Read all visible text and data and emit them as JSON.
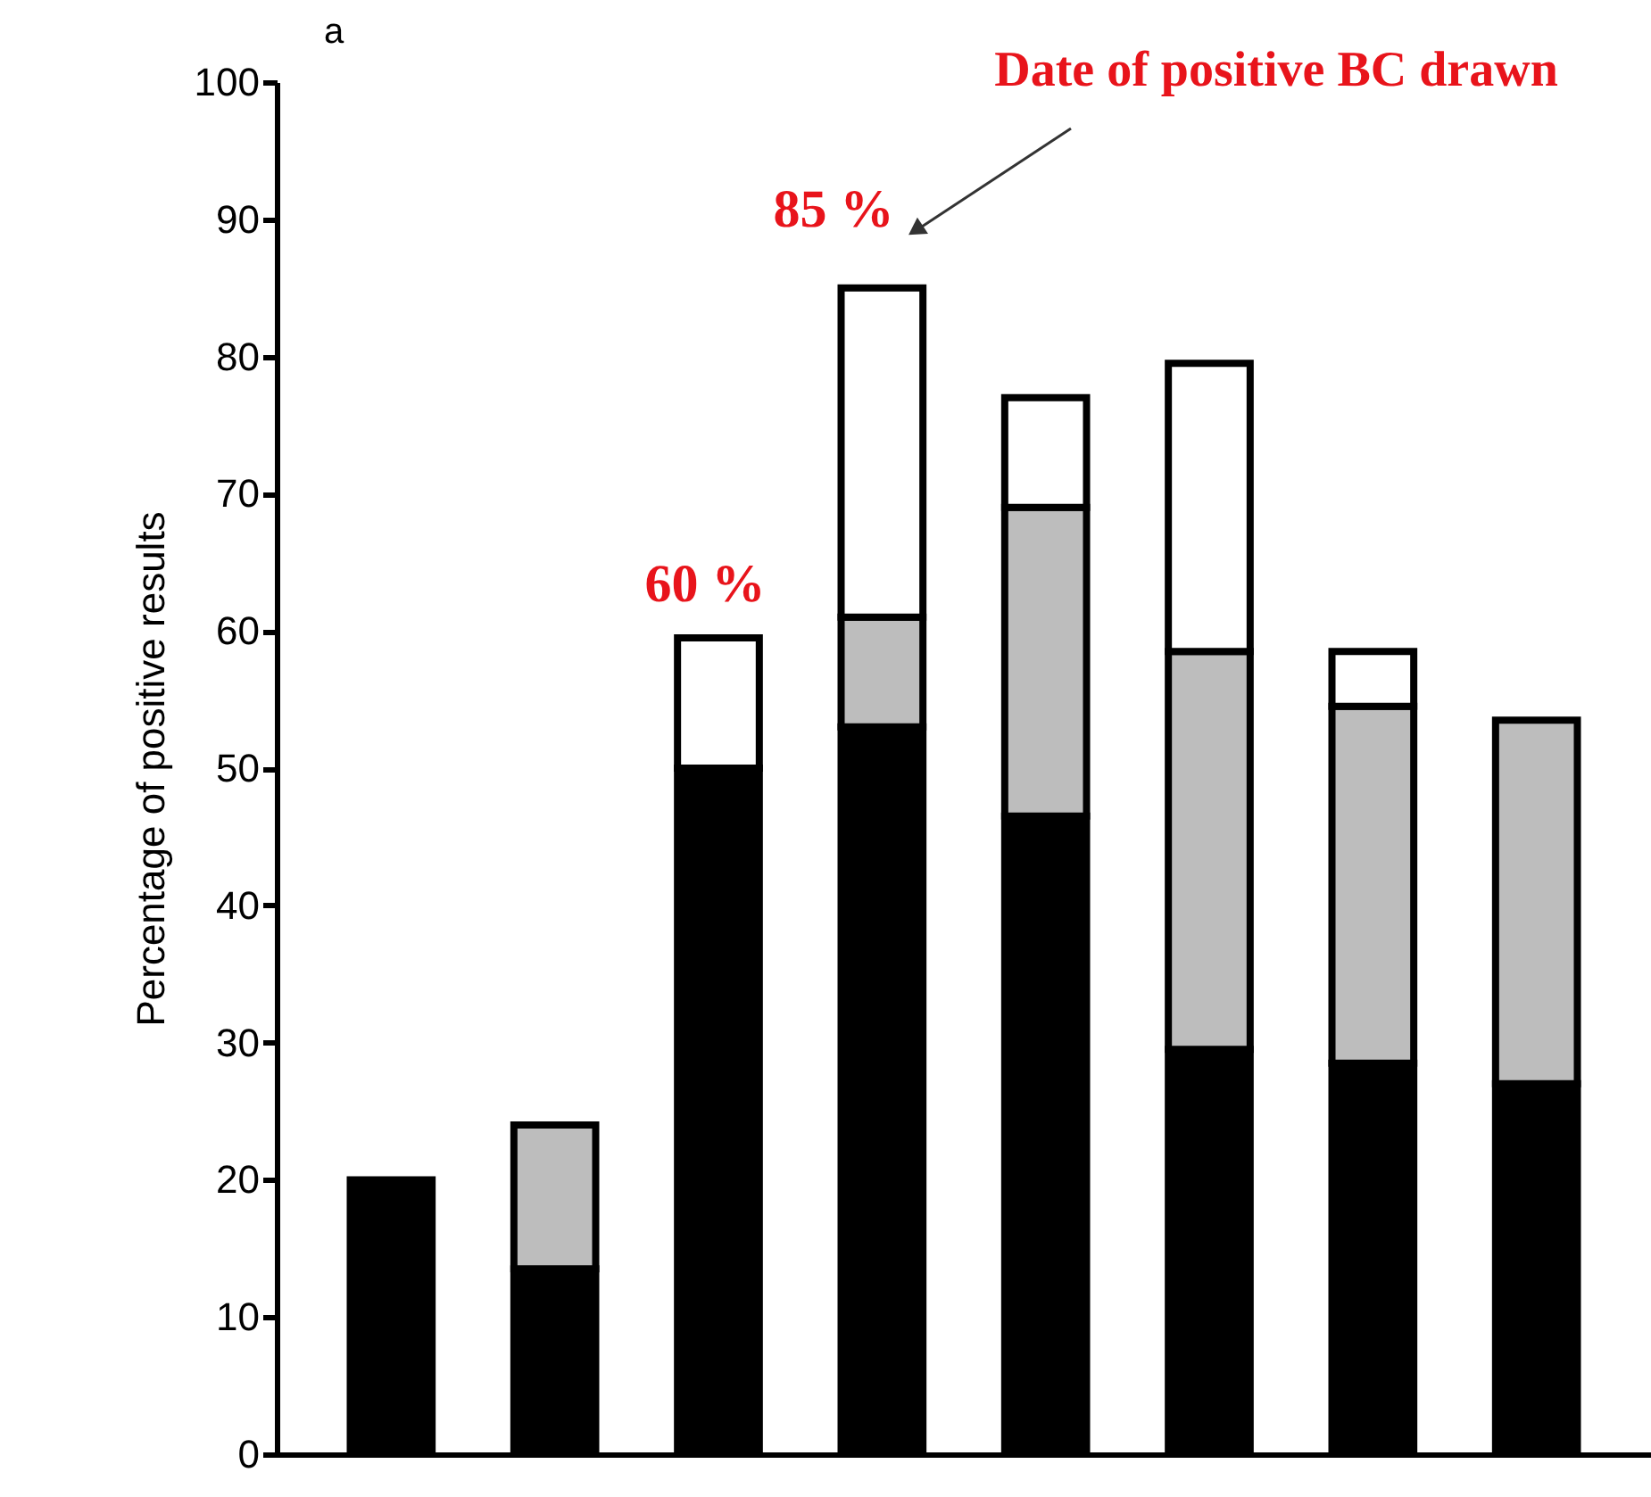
{
  "chart_data": {
    "type": "bar",
    "stacked": true,
    "ylabel": "Percentage of positive results",
    "categories": [
      null,
      null,
      null,
      null,
      null,
      null,
      null,
      null
    ],
    "series": [
      {
        "color": "#000000",
        "values": [
          20,
          13.5,
          50,
          53,
          46.5,
          29.5,
          28.5,
          27
        ]
      },
      {
        "color": "#bdbdbd",
        "values": [
          0,
          10.5,
          0,
          8,
          22.5,
          29,
          26,
          26.5
        ]
      },
      {
        "color": "#ffffff",
        "values": [
          0,
          0,
          9.5,
          24,
          8,
          21,
          4,
          0
        ]
      }
    ],
    "ylim": [
      0,
      100
    ],
    "yticks": [
      0,
      10,
      20,
      30,
      40,
      50,
      60,
      70,
      80,
      90,
      100
    ],
    "tick_labels": "y",
    "grid": false,
    "annotations": [
      "a",
      "60 %",
      "85 %",
      "Date of positive BC drawn"
    ]
  }
}
